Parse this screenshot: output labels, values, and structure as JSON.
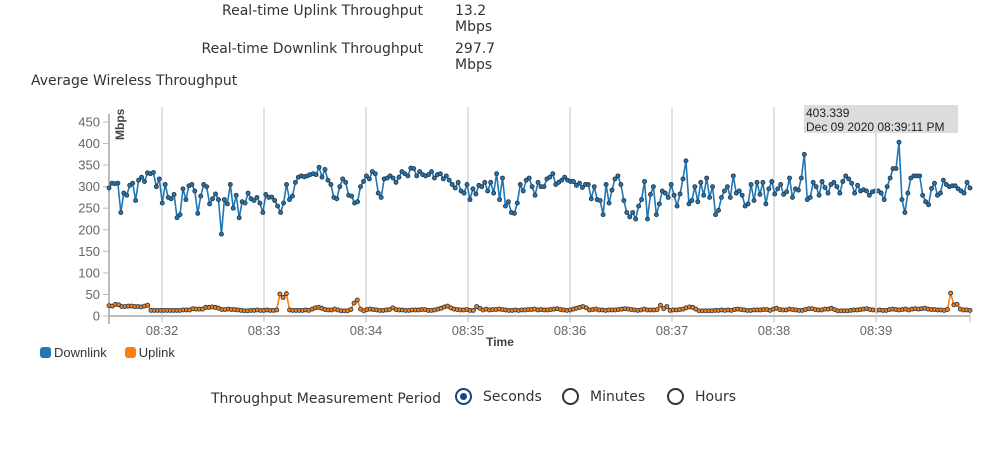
{
  "stats": {
    "uplink": {
      "label": "Real-time Uplink Throughput",
      "value": "13.2 Mbps"
    },
    "downlink": {
      "label": "Real-time Downlink Throughput",
      "value": "297.7 Mbps"
    }
  },
  "chart_title": "Average Wireless Throughput",
  "legend": [
    {
      "name": "Downlink",
      "color": "#1f77b4"
    },
    {
      "name": "Uplink",
      "color": "#ff7f0e"
    }
  ],
  "tooltip": {
    "value": "403.339",
    "timestamp": "Dec 09 2020 08:39:11 PM"
  },
  "period": {
    "label": "Throughput Measurement Period",
    "options": [
      {
        "label": "Seconds",
        "checked": true
      },
      {
        "label": "Minutes",
        "checked": false
      },
      {
        "label": "Hours",
        "checked": false
      }
    ]
  },
  "chart_data": {
    "type": "line",
    "title": "Average Wireless Throughput",
    "xlabel": "Time",
    "ylabel": "Mbps",
    "ylim": [
      0,
      450
    ],
    "yticks": [
      0,
      50,
      100,
      150,
      200,
      250,
      300,
      350,
      400,
      450
    ],
    "xticks": [
      "08:32",
      "08:33",
      "08:34",
      "08:35",
      "08:36",
      "08:37",
      "08:38",
      "08:39"
    ],
    "grid": "vertical lines at x ticks",
    "legend_position": "bottom-left",
    "x_start_seconds_before_0832": 32,
    "sample_interval_seconds": 2,
    "series": [
      {
        "name": "Downlink",
        "color": "#1f77b4",
        "values": [
          297,
          308,
          307,
          308,
          240,
          285,
          280,
          303,
          308,
          268,
          315,
          322,
          312,
          332,
          330,
          333,
          300,
          318,
          262,
          305,
          275,
          272,
          282,
          228,
          235,
          295,
          270,
          302,
          305,
          290,
          238,
          278,
          305,
          300,
          260,
          272,
          283,
          270,
          190,
          270,
          260,
          305,
          250,
          280,
          228,
          265,
          262,
          285,
          272,
          268,
          275,
          262,
          240,
          282,
          275,
          276,
          268,
          255,
          240,
          262,
          305,
          270,
          278,
          310,
          322,
          325,
          323,
          325,
          328,
          330,
          328,
          345,
          322,
          340,
          315,
          305,
          275,
          272,
          300,
          318,
          310,
          280,
          278,
          262,
          265,
          300,
          312,
          325,
          318,
          335,
          330,
          285,
          275,
          318,
          320,
          325,
          320,
          310,
          322,
          335,
          330,
          325,
          343,
          342,
          325,
          335,
          328,
          325,
          328,
          335,
          320,
          328,
          330,
          318,
          325,
          315,
          305,
          297,
          310,
          290,
          285,
          305,
          270,
          295,
          283,
          303,
          300,
          310,
          290,
          310,
          285,
          330,
          270,
          320,
          255,
          265,
          240,
          238,
          262,
          305,
          290,
          315,
          320,
          300,
          280,
          310,
          300,
          300,
          318,
          322,
          330,
          305,
          310,
          315,
          322,
          315,
          312,
          312,
          303,
          308,
          298,
          305,
          305,
          272,
          300,
          270,
          268,
          235,
          305,
          262,
          292,
          318,
          325,
          305,
          268,
          240,
          230,
          240,
          225,
          255,
          270,
          312,
          225,
          282,
          300,
          235,
          260,
          290,
          285,
          275,
          305,
          280,
          255,
          283,
          318,
          360,
          260,
          268,
          300,
          265,
          310,
          280,
          320,
          275,
          300,
          235,
          245,
          275,
          290,
          300,
          275,
          325,
          285,
          290,
          280,
          255,
          260,
          305,
          268,
          310,
          282,
          310,
          260,
          295,
          312,
          283,
          295,
          305,
          282,
          288,
          320,
          275,
          295,
          292,
          320,
          375,
          270,
          275,
          310,
          300,
          280,
          312,
          298,
          285,
          305,
          310,
          300,
          285,
          312,
          325,
          318,
          308,
          285,
          303,
          290,
          293,
          290,
          280,
          288,
          290,
          290,
          285,
          270,
          300,
          320,
          342,
          342,
          403,
          270,
          240,
          285,
          320,
          325,
          325,
          325,
          280,
          265,
          258,
          296,
          308,
          280,
          285,
          315,
          305,
          300,
          302,
          302,
          295,
          290,
          285,
          310,
          297
        ]
      },
      {
        "name": "Uplink",
        "color": "#ff7f0e",
        "values": [
          24,
          23,
          27,
          26,
          22,
          22,
          23,
          23,
          22,
          22,
          21,
          23,
          25,
          13,
          13,
          13,
          13,
          13,
          13,
          13,
          13,
          13,
          13,
          14,
          14,
          14,
          17,
          16,
          16,
          16,
          20,
          20,
          21,
          20,
          18,
          15,
          15,
          16,
          15,
          15,
          14,
          13,
          12,
          12,
          13,
          13,
          14,
          13,
          13,
          14,
          13,
          13,
          14,
          51,
          43,
          52,
          14,
          13,
          13,
          13,
          13,
          14,
          13,
          16,
          19,
          20,
          18,
          15,
          14,
          14,
          16,
          14,
          12,
          12,
          12,
          15,
          30,
          37,
          16,
          12,
          15,
          16,
          15,
          14,
          13,
          13,
          14,
          15,
          19,
          15,
          14,
          14,
          13,
          13,
          14,
          14,
          14,
          15,
          15,
          13,
          13,
          14,
          16,
          18,
          21,
          23,
          19,
          16,
          15,
          14,
          14,
          15,
          13,
          13,
          22,
          18,
          14,
          16,
          14,
          15,
          15,
          16,
          15,
          14,
          13,
          13,
          14,
          13,
          14,
          14,
          15,
          15,
          16,
          14,
          15,
          14,
          14,
          15,
          16,
          17,
          15,
          14,
          13,
          14,
          16,
          18,
          20,
          22,
          19,
          14,
          15,
          16,
          14,
          14,
          13,
          14,
          14,
          14,
          15,
          16,
          17,
          16,
          15,
          14,
          13,
          14,
          16,
          14,
          14,
          14,
          15,
          25,
          17,
          22,
          13,
          14,
          14,
          15,
          16,
          19,
          21,
          20,
          16,
          12,
          12,
          12,
          12,
          12,
          13,
          13,
          14,
          13,
          14,
          13,
          15,
          16,
          15,
          14,
          13,
          13,
          14,
          14,
          14,
          15,
          15,
          13,
          16,
          18,
          15,
          14,
          14,
          16,
          15,
          14,
          13,
          13,
          15,
          17,
          17,
          15,
          14,
          14,
          16,
          16,
          18,
          15,
          12,
          12,
          12,
          12,
          13,
          14,
          14,
          15,
          16,
          17,
          15,
          14,
          13,
          14,
          13,
          13,
          15,
          16,
          15,
          14,
          15,
          16,
          14,
          16,
          17,
          16,
          17,
          18,
          16,
          15,
          15,
          14,
          14,
          13,
          15,
          53,
          26,
          27,
          16,
          14,
          14,
          13
        ]
      }
    ]
  }
}
